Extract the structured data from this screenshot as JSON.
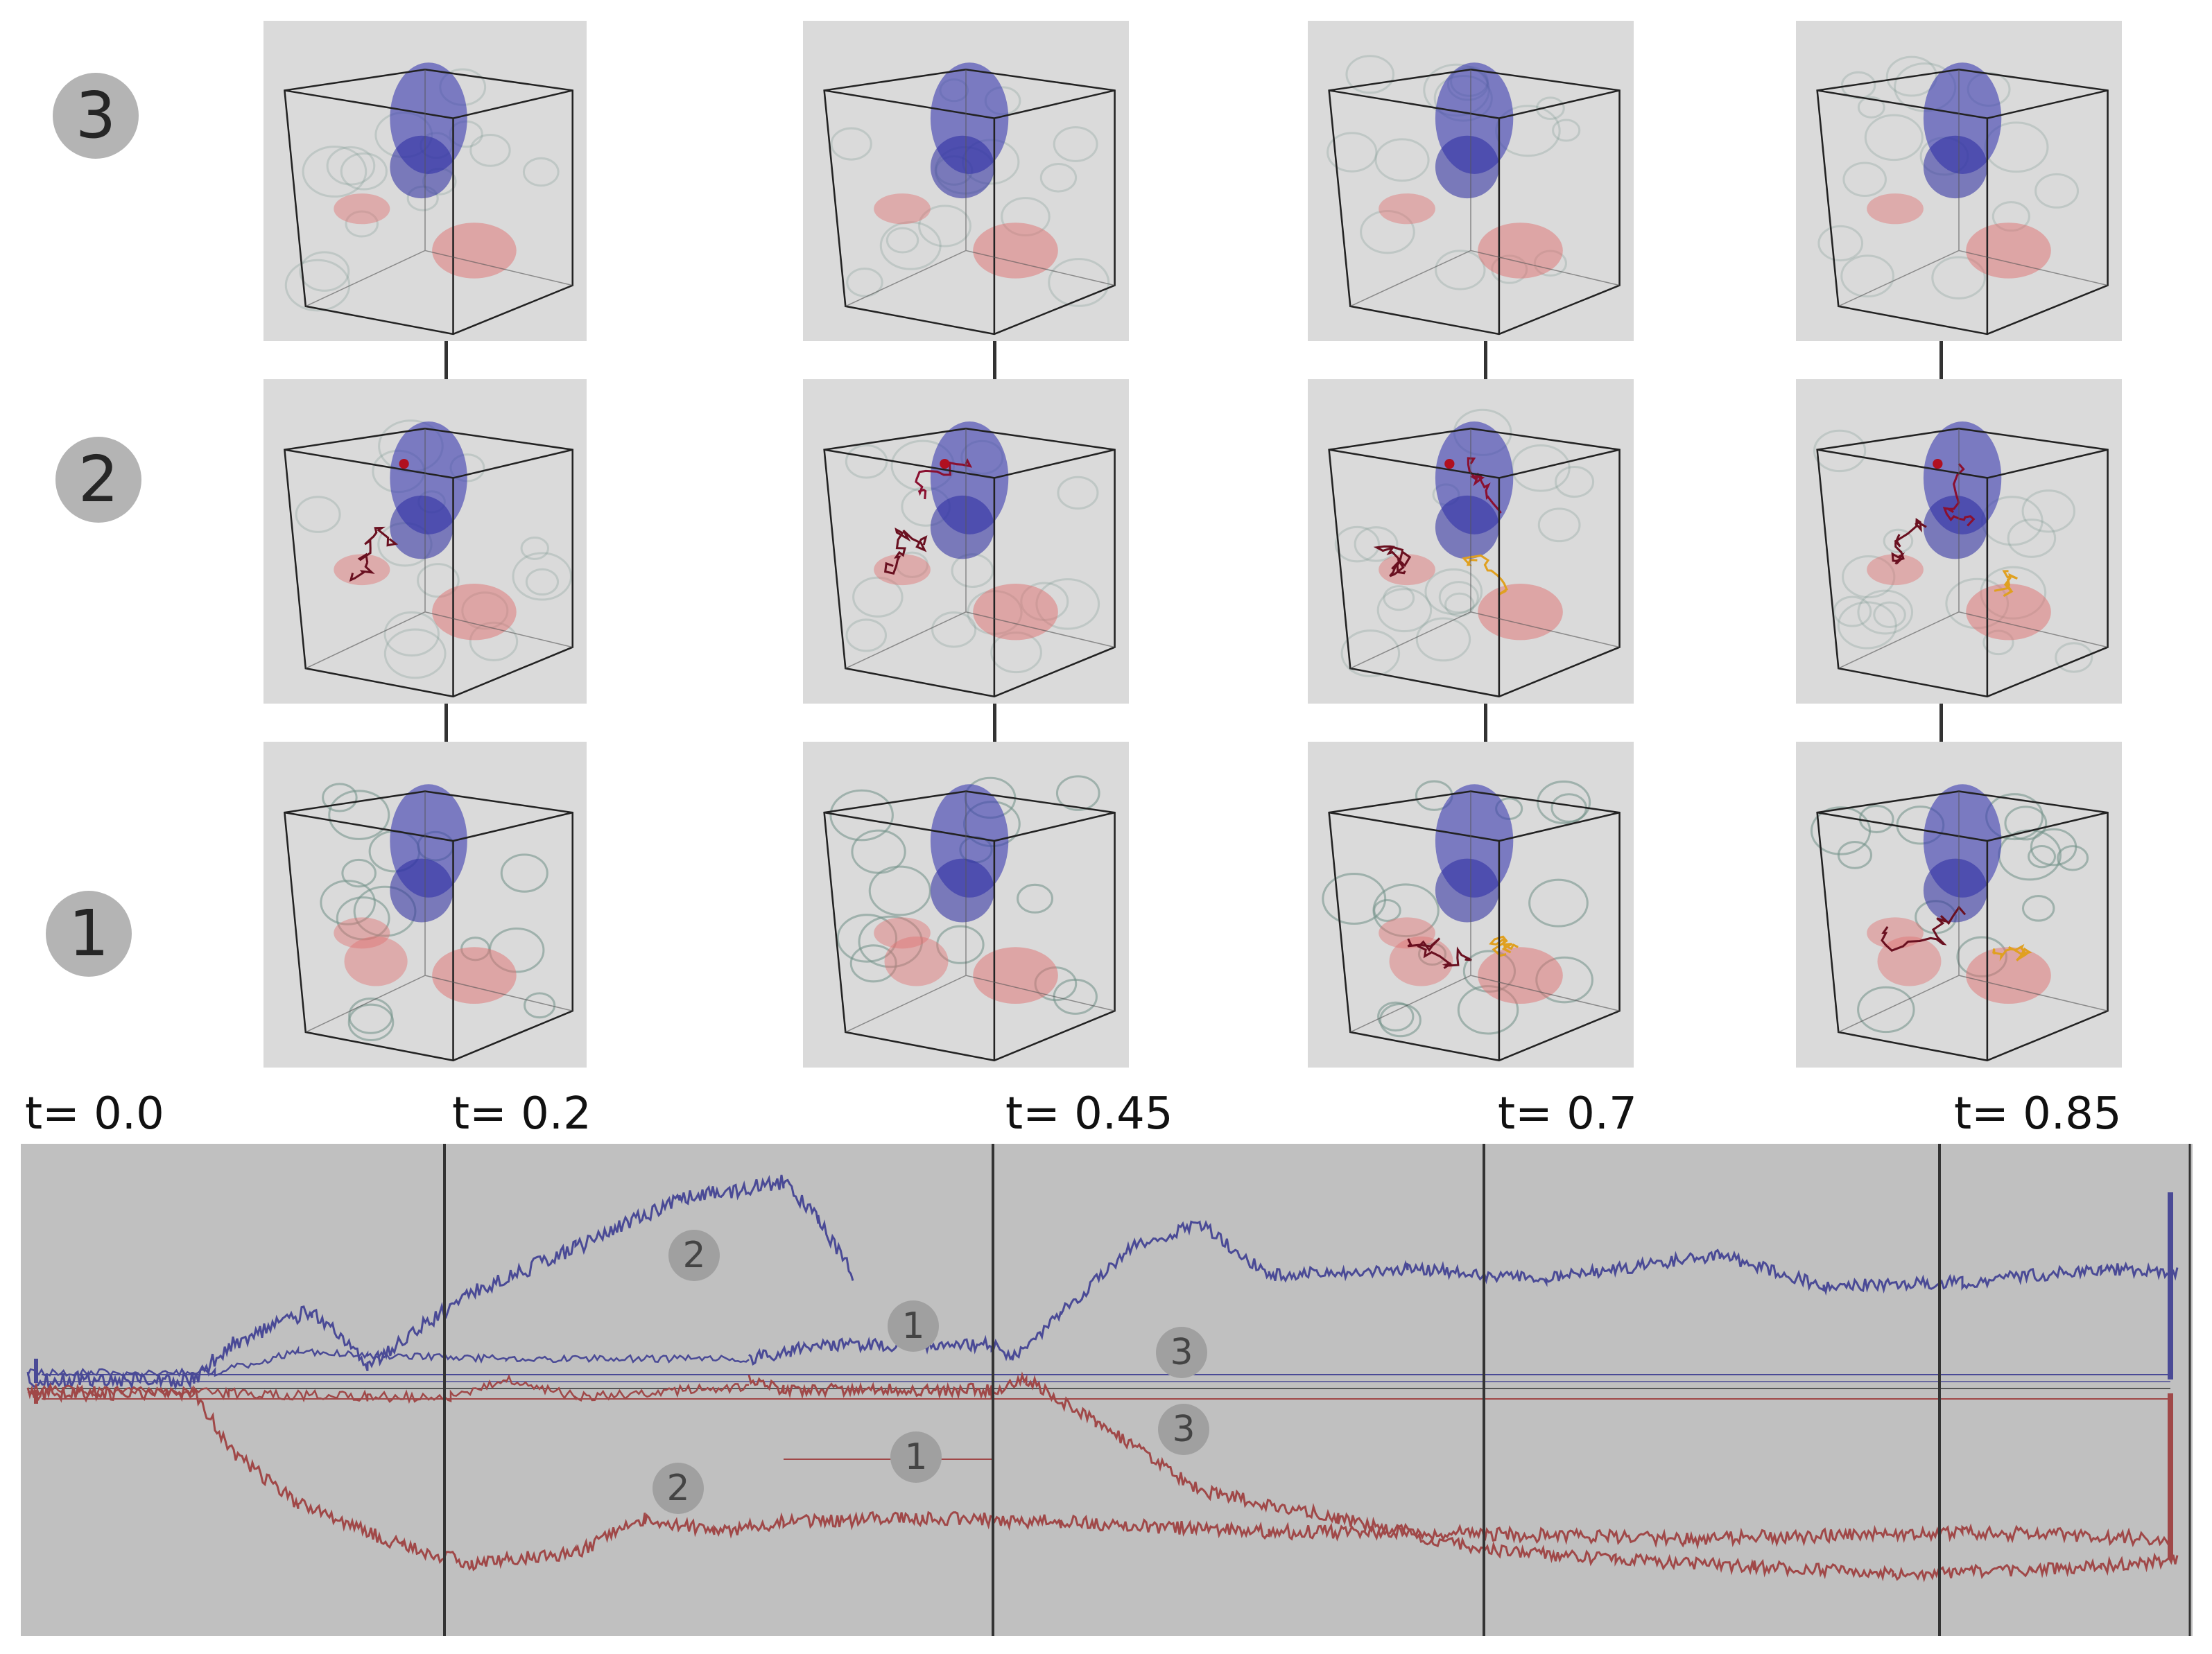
{
  "rows": [
    {
      "id": "3",
      "label": "3"
    },
    {
      "id": "2",
      "label": "2"
    },
    {
      "id": "1",
      "label": "1"
    }
  ],
  "time_labels": [
    "t= 0.0",
    "t= 0.2",
    "t= 0.45",
    "t= 0.7",
    "t= 0.85"
  ],
  "timeline_badges": {
    "blue": [
      "2",
      "1",
      "3"
    ],
    "red": [
      "3",
      "1",
      "2"
    ]
  },
  "colors": {
    "tile_bg": "#dadada",
    "timeline_bg": "#c0c0c0",
    "blue_curve": "#4a4a96",
    "red_curve": "#a04848",
    "badge": "#b4b4b4"
  }
}
